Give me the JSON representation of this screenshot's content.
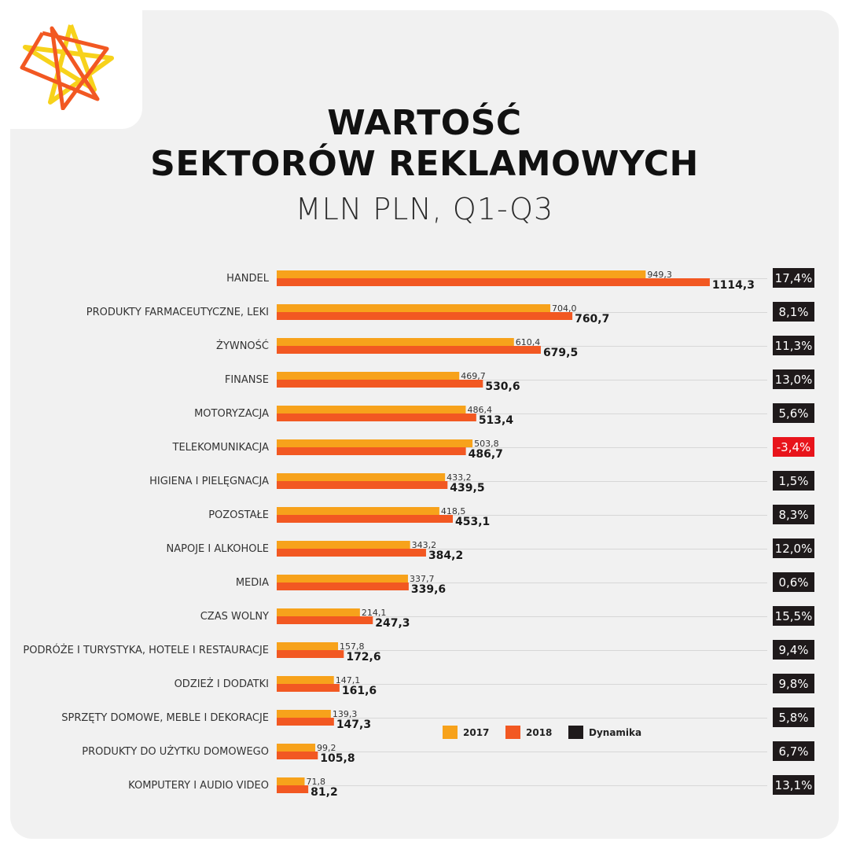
{
  "colors": {
    "series_2017": "#f7a21b",
    "series_2018": "#f25822",
    "dynamika": "#1f1a1b",
    "negative": "#e8141b",
    "grid": "#d7d7d7"
  },
  "chart_data": {
    "type": "bar",
    "orientation": "horizontal",
    "title": "WARTOŚĆ SEKTORÓW REKLAMOWYCH",
    "title_lines": [
      "WARTOŚĆ",
      "SEKTORÓW REKLAMOWYCH"
    ],
    "subtitle": "MLN PLN, Q1-Q3",
    "xlim": [
      0,
      1200
    ],
    "categories": [
      "HANDEL",
      "PRODUKTY FARMACEUTYCZNE, LEKI",
      "ŻYWNOŚĆ",
      "FINANSE",
      "MOTORYZACJA",
      "TELEKOMUNIKACJA",
      "HIGIENA I PIELĘGNACJA",
      "POZOSTAŁE",
      "NAPOJE I ALKOHOLE",
      "MEDIA",
      "CZAS WOLNY",
      "PODRÓŻE I TURYSTYKA, HOTELE I RESTAURACJE",
      "ODZIEŻ I DODATKI",
      "SPRZĘTY DOMOWE, MEBLE I DEKORACJE",
      "PRODUKTY DO UŻYTKU DOMOWEGO",
      "KOMPUTERY I AUDIO VIDEO"
    ],
    "series": [
      {
        "name": "2017",
        "values": [
          949.3,
          704.0,
          610.4,
          469.7,
          486.4,
          503.8,
          433.2,
          418.5,
          343.2,
          337.7,
          214.1,
          157.8,
          147.1,
          139.3,
          99.2,
          71.8
        ],
        "labels": [
          "949,3",
          "704,0",
          "610,4",
          "469,7",
          "486,4",
          "503,8",
          "433,2",
          "418,5",
          "343,2",
          "337,7",
          "214,1",
          "157,8",
          "147,1",
          "139,3",
          "99,2",
          "71,8"
        ]
      },
      {
        "name": "2018",
        "values": [
          1114.3,
          760.7,
          679.5,
          530.6,
          513.4,
          486.7,
          439.5,
          453.1,
          384.2,
          339.6,
          247.3,
          172.6,
          161.6,
          147.3,
          105.8,
          81.2
        ],
        "labels": [
          "1114,3",
          "760,7",
          "679,5",
          "530,6",
          "513,4",
          "486,7",
          "439,5",
          "453,1",
          "384,2",
          "339,6",
          "247,3",
          "172,6",
          "161,6",
          "147,3",
          "105,8",
          "81,2"
        ]
      },
      {
        "name": "Dynamika",
        "values": [
          17.4,
          8.1,
          11.3,
          13.0,
          5.6,
          -3.4,
          1.5,
          8.3,
          12.0,
          0.6,
          15.5,
          9.4,
          9.8,
          5.8,
          6.7,
          13.1
        ],
        "labels": [
          "17,4%",
          "8,1%",
          "11,3%",
          "13,0%",
          "5,6%",
          "-3,4%",
          "1,5%",
          "8,3%",
          "12,0%",
          "0,6%",
          "15,5%",
          "9,4%",
          "9,8%",
          "5,8%",
          "6,7%",
          "13,1%"
        ]
      }
    ],
    "legend": {
      "placement": "bottom-center",
      "entries": [
        "2017",
        "2018",
        "Dynamika"
      ]
    }
  }
}
